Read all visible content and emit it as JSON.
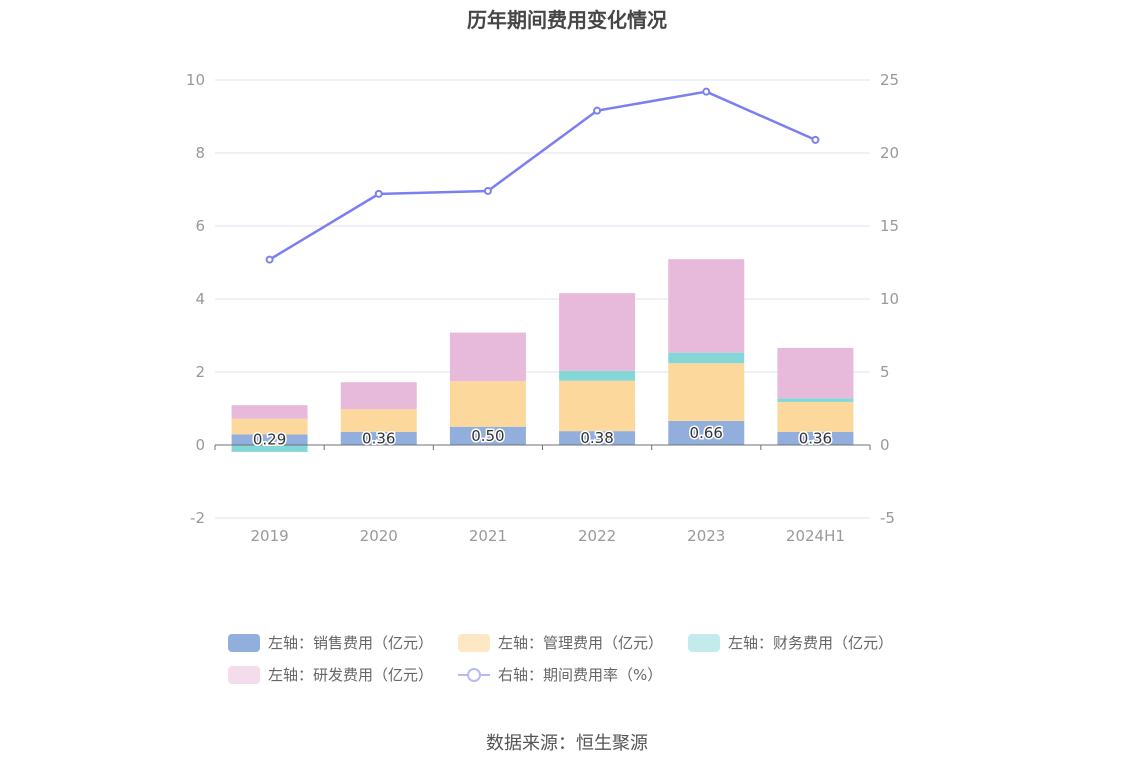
{
  "chart_data": {
    "type": "bar",
    "title": "历年期间费用变化情况",
    "categories": [
      "2019",
      "2020",
      "2021",
      "2022",
      "2023",
      "2024H1"
    ],
    "stacked": true,
    "y_left": {
      "ylim": [
        -2,
        10
      ],
      "ticks": [
        "-2",
        "0",
        "2",
        "4",
        "6",
        "8",
        "10"
      ]
    },
    "y_right": {
      "ylim": [
        -5,
        25
      ],
      "ticks": [
        "-5",
        "0",
        "5",
        "10",
        "15",
        "20",
        "25"
      ]
    },
    "series": [
      {
        "name": "左轴：销售费用（亿元）",
        "axis": "left",
        "type": "bar",
        "color": "#91aedd",
        "values": [
          0.29,
          0.36,
          0.5,
          0.38,
          0.66,
          0.36
        ],
        "labels": [
          "0.29",
          "0.36",
          "0.50",
          "0.38",
          "0.66",
          "0.36"
        ]
      },
      {
        "name": "左轴：管理费用（亿元）",
        "axis": "left",
        "type": "bar",
        "color": "#fdd89c",
        "values": [
          0.43,
          0.62,
          1.25,
          1.38,
          1.58,
          0.82
        ]
      },
      {
        "name": "左轴：财务费用（亿元）",
        "axis": "left",
        "type": "bar",
        "color": "#85d7d7",
        "values": [
          -0.19,
          0.0,
          0.0,
          0.27,
          0.29,
          0.1
        ]
      },
      {
        "name": "左轴：研发费用（亿元）",
        "axis": "left",
        "type": "bar",
        "color": "#e7b9db",
        "values": [
          0.37,
          0.74,
          1.33,
          2.13,
          2.56,
          1.38
        ]
      },
      {
        "name": "右轴：期间费用率（%）",
        "axis": "right",
        "type": "line",
        "color": "#7b7ff0",
        "values": [
          12.7,
          17.2,
          17.4,
          22.9,
          24.2,
          20.9
        ]
      }
    ],
    "grid": true,
    "legend_position": "bottom"
  },
  "source": "数据来源：恒生聚源"
}
